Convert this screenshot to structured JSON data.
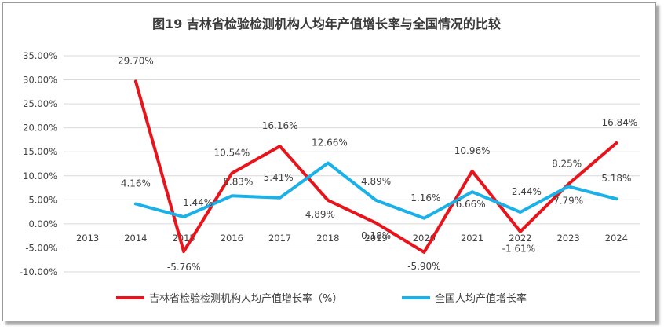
{
  "chart_data": {
    "type": "line",
    "title": "图19   吉林省检验检测机构人均年产值增长率与全国情况的比较",
    "categories": [
      "2013",
      "2014",
      "2015",
      "2016",
      "2017",
      "2018",
      "2019",
      "2020",
      "2021",
      "2022",
      "2023",
      "2024"
    ],
    "y_tick_labels": [
      "35.00%",
      "30.00%",
      "25.00%",
      "20.00%",
      "15.00%",
      "10.00%",
      "5.00%",
      "0.00%",
      "-5.00%",
      "-10.00%"
    ],
    "ylim": [
      -10,
      35
    ],
    "y_step": 5,
    "grid": true,
    "legend_position": "bottom",
    "series": [
      {
        "name": "吉林省检验检测机构人均产值增长率（%）",
        "color": "#e8141b",
        "values": [
          null,
          29.7,
          -5.76,
          10.54,
          16.16,
          4.89,
          0.18,
          -5.9,
          10.96,
          -1.61,
          8.25,
          16.84
        ],
        "labels": [
          "",
          "29.70%",
          "-5.76%",
          "10.54%",
          "16.16%",
          "4.89%",
          "0.18%",
          "-5.90%",
          "10.96%",
          "-1.61%",
          "8.25%",
          "16.84%"
        ]
      },
      {
        "name": "全国人均产值增长率",
        "color": "#1ab1e8",
        "values": [
          null,
          4.16,
          1.44,
          5.83,
          5.41,
          12.66,
          4.89,
          1.16,
          6.66,
          2.44,
          7.79,
          5.18
        ],
        "labels": [
          "",
          "4.16%",
          "1.44%",
          "5.83%",
          "5.41%",
          "12.66%",
          "4.89%",
          "1.16%",
          "6.66%",
          "2.44%",
          "7.79%",
          "5.18%"
        ]
      }
    ]
  }
}
